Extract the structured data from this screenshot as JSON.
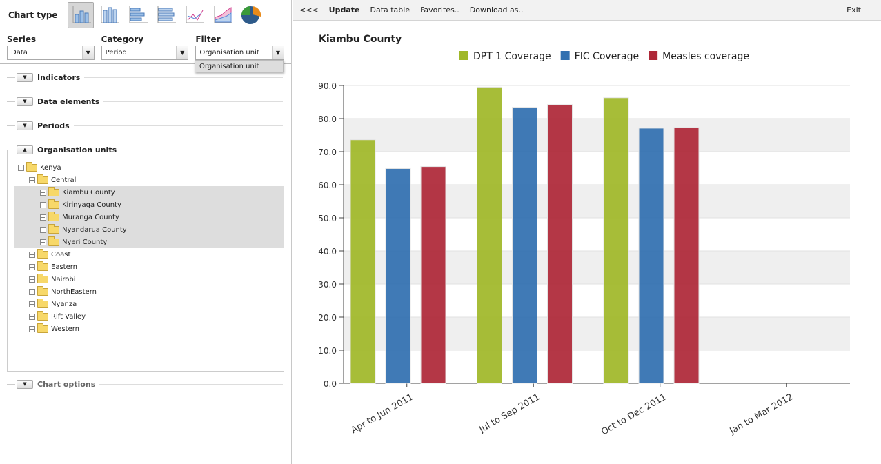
{
  "chart_type": {
    "label": "Chart type",
    "icons": [
      "column-chart-icon",
      "stacked-column-chart-icon",
      "bar-chart-icon",
      "stacked-bar-chart-icon",
      "line-chart-icon",
      "area-chart-icon",
      "pie-chart-icon"
    ],
    "selected": 0
  },
  "selectors": {
    "series": {
      "label": "Series",
      "value": "Data"
    },
    "category": {
      "label": "Category",
      "value": "Period"
    },
    "filter": {
      "label": "Filter",
      "value": "Organisation unit",
      "dropdown_option": "Organisation unit"
    }
  },
  "sections": {
    "indicators": "Indicators",
    "data_elements": "Data elements",
    "periods": "Periods",
    "org_units": "Organisation units",
    "chart_options": "Chart options"
  },
  "tree": [
    {
      "label": "Kenya",
      "level": 0,
      "expanded": true
    },
    {
      "label": "Central",
      "level": 1,
      "expanded": true
    },
    {
      "label": "Kiambu County",
      "level": 2,
      "expanded": false,
      "selected": true
    },
    {
      "label": "Kirinyaga County",
      "level": 2,
      "expanded": false,
      "selected": true
    },
    {
      "label": "Muranga County",
      "level": 2,
      "expanded": false,
      "selected": true
    },
    {
      "label": "Nyandarua County",
      "level": 2,
      "expanded": false,
      "selected": true
    },
    {
      "label": "Nyeri County",
      "level": 2,
      "expanded": false,
      "selected": true
    },
    {
      "label": "Coast",
      "level": 1,
      "expanded": false
    },
    {
      "label": "Eastern",
      "level": 1,
      "expanded": false
    },
    {
      "label": "Nairobi",
      "level": 1,
      "expanded": false
    },
    {
      "label": "NorthEastern",
      "level": 1,
      "expanded": false
    },
    {
      "label": "Nyanza",
      "level": 1,
      "expanded": false
    },
    {
      "label": "Rift Valley",
      "level": 1,
      "expanded": false
    },
    {
      "label": "Western",
      "level": 1,
      "expanded": false
    }
  ],
  "toolbar": {
    "back": "<<<",
    "update": "Update",
    "data_table": "Data table",
    "favorites": "Favorites..",
    "download": "Download as..",
    "exit": "Exit"
  },
  "chart_data": {
    "type": "bar",
    "title": "Kiambu County",
    "categories": [
      "Apr to Jun 2011",
      "Jul to Sep 2011",
      "Oct to Dec 2011",
      "Jan to Mar 2012"
    ],
    "series": [
      {
        "name": "DPT 1 Coverage",
        "color": "#a0b829",
        "values": [
          73.6,
          89.5,
          86.3,
          null
        ]
      },
      {
        "name": "FIC Coverage",
        "color": "#3170b0",
        "values": [
          64.9,
          83.4,
          77.1,
          null
        ]
      },
      {
        "name": "Measles coverage",
        "color": "#ae2838",
        "values": [
          65.5,
          84.2,
          77.3,
          null
        ]
      }
    ],
    "ylim": [
      0,
      90
    ],
    "yticks": [
      "0.0",
      "10.0",
      "20.0",
      "30.0",
      "40.0",
      "50.0",
      "60.0",
      "70.0",
      "80.0",
      "90.0"
    ],
    "legend": "top",
    "grid": "alternating bands"
  }
}
